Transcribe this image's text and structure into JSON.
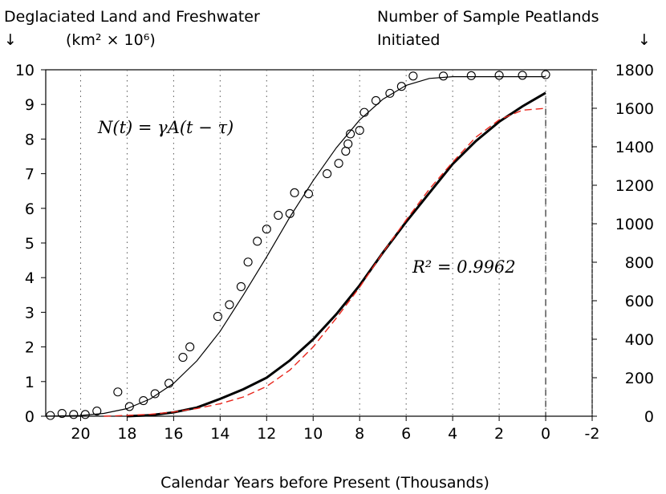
{
  "chart_data": {
    "type": "scatter",
    "title": "",
    "xlabel": "Calendar Years before Present (Thousands)",
    "ylabel_left_line1": "Deglaciated Land and Freshwater",
    "ylabel_left_line2": "(km² × 10⁶)",
    "ylabel_right_line1": "Number of Sample Peatlands",
    "ylabel_right_line2": "Initiated",
    "arrow_left": "↓",
    "arrow_right": "↓",
    "equation_text": "N(t) = γA(t − τ)",
    "r2_text": "R² = 0.9962",
    "x_reversed": true,
    "xlim": [
      21.5,
      -2
    ],
    "ylim_left": [
      0,
      10
    ],
    "ylim_right": [
      0,
      1800
    ],
    "x_ticks": [
      "20",
      "18",
      "16",
      "14",
      "12",
      "10",
      "8",
      "6",
      "4",
      "2",
      "0",
      "-2"
    ],
    "x_tick_values": [
      20,
      18,
      16,
      14,
      12,
      10,
      8,
      6,
      4,
      2,
      0,
      -2
    ],
    "y_left_ticks": [
      "0",
      "1",
      "2",
      "3",
      "4",
      "5",
      "6",
      "7",
      "8",
      "9",
      "10"
    ],
    "y_right_ticks": [
      "0",
      "200",
      "400",
      "600",
      "800",
      "1000",
      "1200",
      "1400",
      "1600",
      "1800"
    ],
    "grid": "dotted vertical lines at x ticks",
    "series": [
      {
        "axis": "left",
        "marker": "circle",
        "x": [
          21.3,
          20.8,
          20.3,
          19.8,
          19.3,
          18.4,
          17.9,
          17.3,
          16.8,
          16.2,
          15.6,
          15.3,
          14.1,
          13.6,
          13.1,
          12.8,
          12.4,
          12.0,
          11.5,
          11.0,
          10.8,
          10.2,
          9.4,
          8.9,
          8.6,
          8.5,
          8.4,
          8.0,
          7.8,
          7.3,
          6.7,
          6.2,
          5.7,
          4.4,
          3.2,
          2.0,
          1.0,
          0.0
        ],
        "y": [
          0.02,
          0.08,
          0.05,
          0.05,
          0.15,
          0.7,
          0.28,
          0.45,
          0.65,
          0.95,
          1.7,
          2.0,
          2.88,
          3.22,
          3.74,
          4.45,
          5.05,
          5.4,
          5.8,
          5.85,
          6.45,
          6.42,
          7.0,
          7.3,
          7.65,
          7.86,
          8.15,
          8.25,
          8.77,
          9.11,
          9.32,
          9.52,
          9.82,
          9.82,
          9.83,
          9.84,
          9.84,
          9.86
        ]
      },
      {
        "axis": "left",
        "marker": "line",
        "x": [
          21.5,
          20,
          19,
          18,
          17,
          16,
          15,
          14,
          13,
          12,
          11,
          10,
          9,
          8,
          7,
          6,
          5,
          4,
          3,
          2,
          1,
          0
        ],
        "y": [
          0,
          0.02,
          0.08,
          0.22,
          0.5,
          0.95,
          1.6,
          2.45,
          3.5,
          4.6,
          5.75,
          6.8,
          7.75,
          8.55,
          9.15,
          9.55,
          9.75,
          9.8,
          9.8,
          9.8,
          9.8,
          9.8
        ]
      },
      {
        "axis": "right",
        "marker": "thick-line",
        "x": [
          18,
          17,
          16,
          15,
          14,
          13,
          12,
          11,
          10,
          9,
          8,
          7,
          6,
          5,
          4,
          3,
          2,
          1,
          0
        ],
        "y": [
          0,
          5,
          20,
          45,
          90,
          140,
          200,
          290,
          400,
          530,
          680,
          850,
          1010,
          1160,
          1310,
          1430,
          1530,
          1610,
          1680
        ]
      },
      {
        "axis": "right",
        "marker": "dashed-red",
        "x": [
          19,
          18,
          17,
          16,
          15,
          14,
          13,
          12,
          11,
          10,
          9,
          8,
          7,
          6,
          5,
          4,
          3,
          2,
          1,
          0
        ],
        "y": [
          0,
          4,
          10,
          22,
          40,
          65,
          100,
          155,
          240,
          360,
          510,
          670,
          850,
          1020,
          1180,
          1320,
          1450,
          1540,
          1590,
          1600
        ]
      }
    ],
    "annotation_vline_x": 0
  },
  "colors": {
    "fit_dashed": "#e8261c",
    "axes": "#000000"
  }
}
